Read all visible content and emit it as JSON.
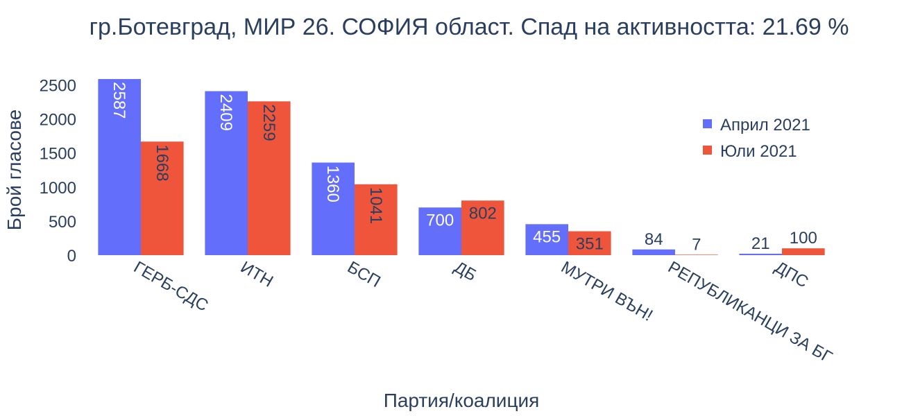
{
  "chart_data": {
    "type": "bar",
    "title": "гр.Ботевград, МИР 26. СОФИЯ област. Спад на активността: 21.69 %",
    "xlabel": "Партия/коалиция",
    "ylabel": "Брой гласове",
    "categories": [
      "ГЕРБ-СДС",
      "ИТН",
      "БСП",
      "ДБ",
      "МУТРИ ВЪН!",
      "РЕПУБЛИКАНЦИ ЗА БГ",
      "ДПС"
    ],
    "series": [
      {
        "name": "Април 2021",
        "color": "#636efa",
        "values": [
          2587,
          2409,
          1360,
          700,
          455,
          84,
          21
        ]
      },
      {
        "name": "Юли 2021",
        "color": "#ef553b",
        "values": [
          1668,
          2259,
          1041,
          802,
          351,
          7,
          100
        ]
      }
    ],
    "ylim": [
      0,
      2587
    ],
    "yticks": [
      0,
      500,
      1000,
      1500,
      2000,
      2500
    ],
    "grid": false,
    "legend_position": "top-right"
  }
}
